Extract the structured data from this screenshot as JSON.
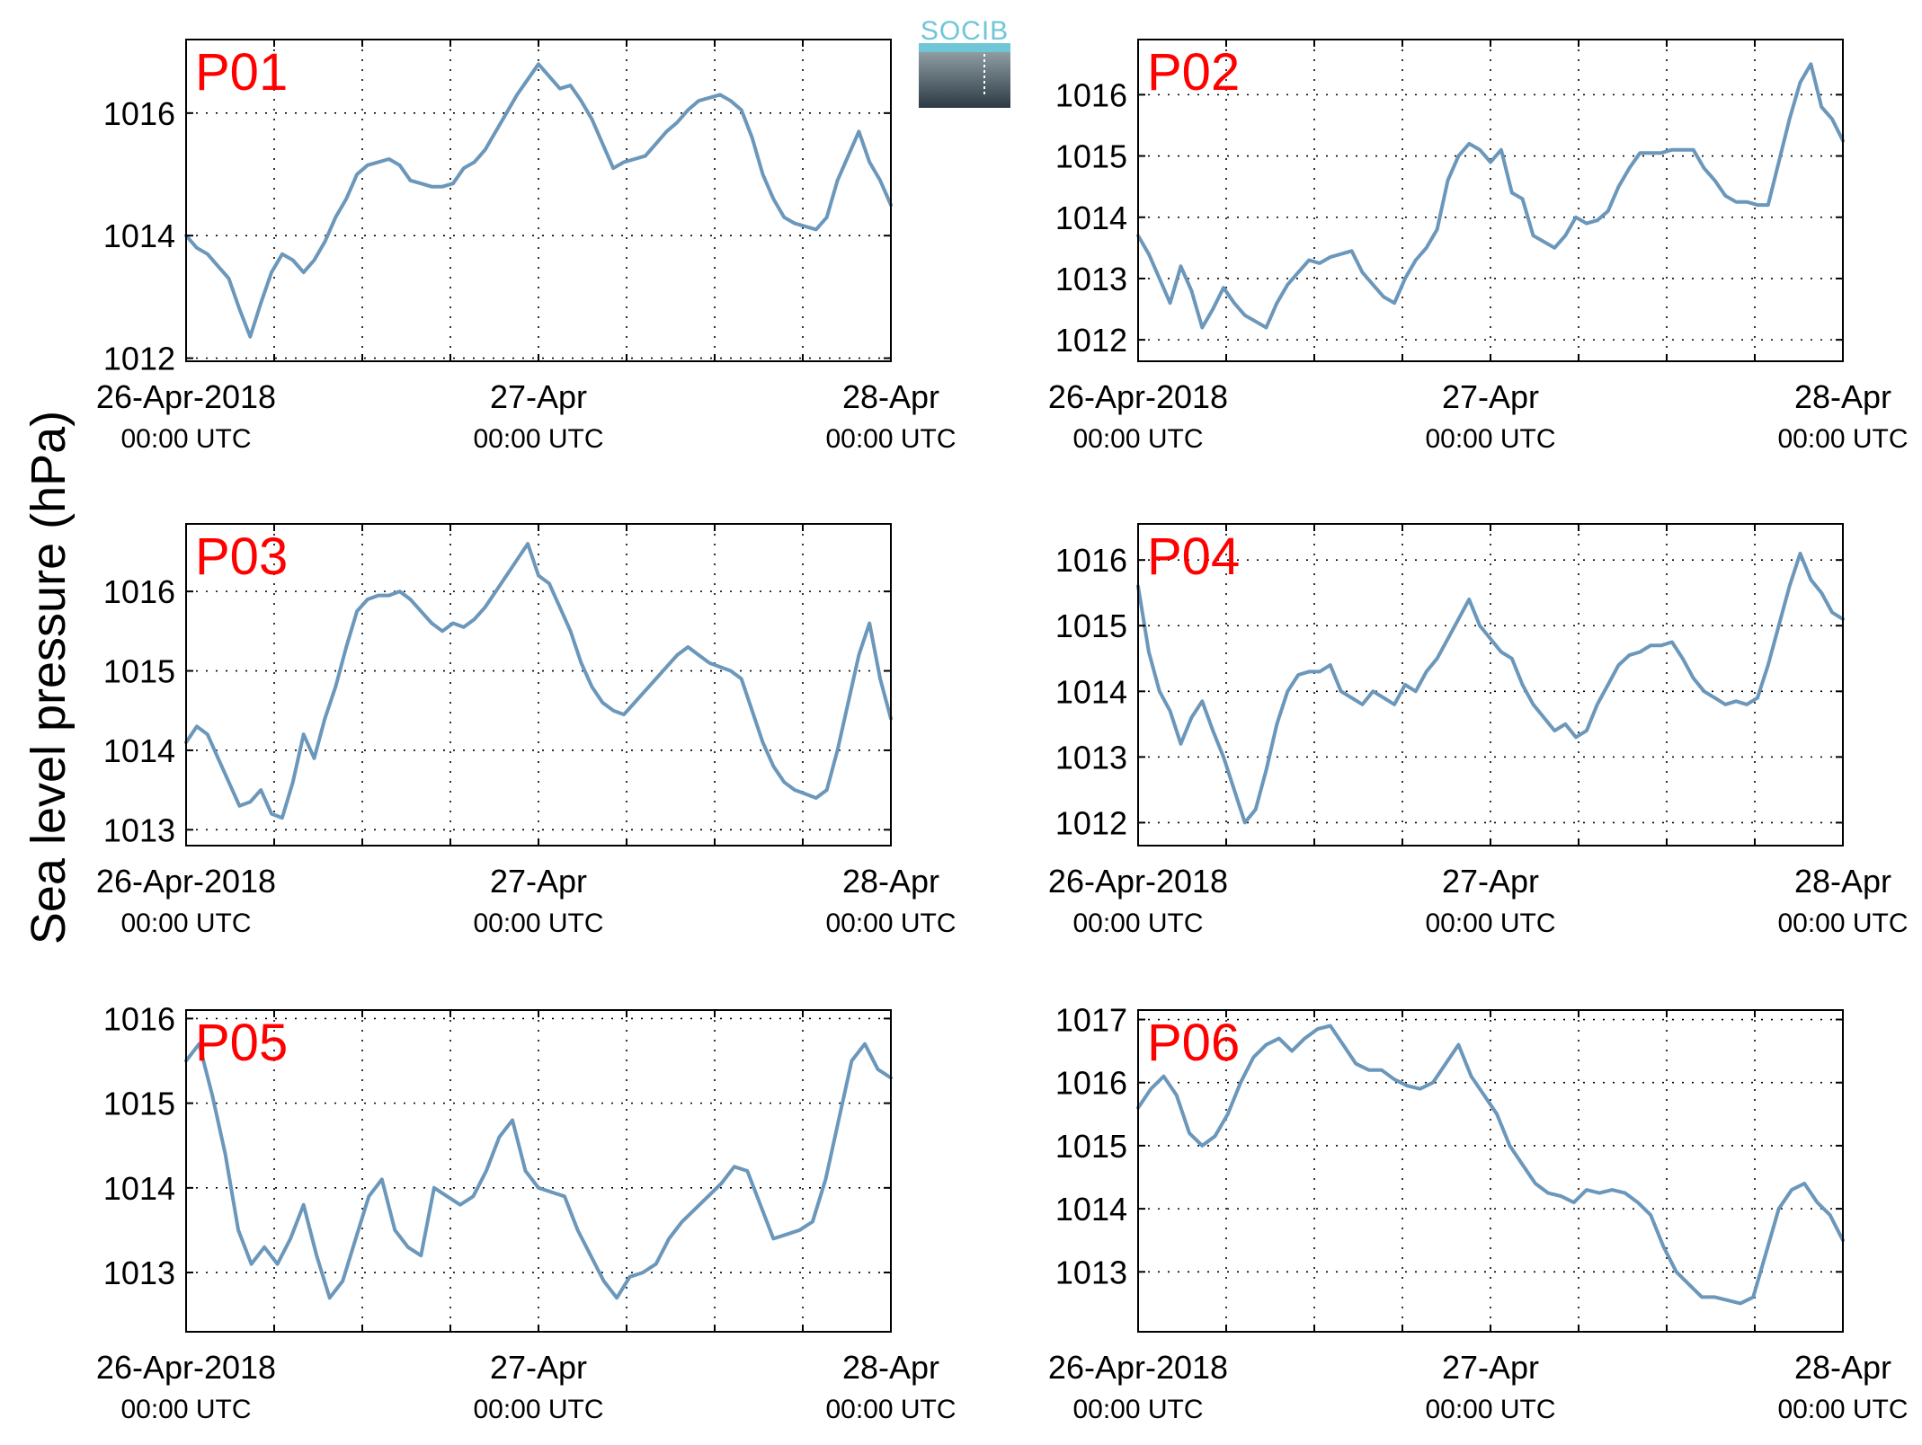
{
  "figure": {
    "ylabel": "Sea level pressure (hPa)",
    "logo_text": "SOCIB"
  },
  "colors": {
    "line": "#6b97bb",
    "panel_label": "#ff0000",
    "logo_accent": "#6ec6d6"
  },
  "chart_data": [
    {
      "type": "line",
      "panel": "P01",
      "series": [
        {
          "values": [
            1014.0,
            1013.8,
            1013.7,
            1013.5,
            1013.3,
            1012.8,
            1012.35,
            1012.9,
            1013.4,
            1013.7,
            1013.6,
            1013.4,
            1013.6,
            1013.9,
            1014.3,
            1014.6,
            1015.0,
            1015.15,
            1015.2,
            1015.25,
            1015.15,
            1014.9,
            1014.85,
            1014.8,
            1014.8,
            1014.85,
            1015.1,
            1015.2,
            1015.4,
            1015.7,
            1016.0,
            1016.3,
            1016.55,
            1016.8,
            1016.6,
            1016.4,
            1016.45,
            1016.2,
            1015.9,
            1015.5,
            1015.1,
            1015.2,
            1015.25,
            1015.3,
            1015.5,
            1015.7,
            1015.85,
            1016.05,
            1016.2,
            1016.25,
            1016.3,
            1016.2,
            1016.05,
            1015.6,
            1015.0,
            1014.6,
            1014.3,
            1014.2,
            1014.15,
            1014.1,
            1014.3,
            1014.9,
            1015.3,
            1015.7,
            1015.2,
            1014.9,
            1014.5
          ]
        }
      ],
      "x_ticks": [
        {
          "date": "26-Apr-2018",
          "time": "00:00 UTC"
        },
        {
          "date": "27-Apr",
          "time": "00:00 UTC"
        },
        {
          "date": "28-Apr",
          "time": "00:00 UTC"
        }
      ],
      "y_ticks": [
        1012,
        1014,
        1016
      ],
      "ylim": [
        1011.95,
        1017.2
      ],
      "grid": true
    },
    {
      "type": "line",
      "panel": "P02",
      "series": [
        {
          "values": [
            1013.7,
            1013.4,
            1013.0,
            1012.6,
            1013.2,
            1012.8,
            1012.2,
            1012.5,
            1012.85,
            1012.6,
            1012.4,
            1012.3,
            1012.2,
            1012.6,
            1012.9,
            1013.1,
            1013.3,
            1013.25,
            1013.35,
            1013.4,
            1013.45,
            1013.1,
            1012.9,
            1012.7,
            1012.6,
            1013.0,
            1013.3,
            1013.5,
            1013.8,
            1014.6,
            1015.0,
            1015.2,
            1015.1,
            1014.9,
            1015.1,
            1014.4,
            1014.3,
            1013.7,
            1013.6,
            1013.5,
            1013.7,
            1014.0,
            1013.9,
            1013.95,
            1014.1,
            1014.5,
            1014.8,
            1015.05,
            1015.05,
            1015.05,
            1015.1,
            1015.1,
            1015.1,
            1014.8,
            1014.6,
            1014.35,
            1014.25,
            1014.25,
            1014.2,
            1014.2,
            1014.9,
            1015.6,
            1016.2,
            1016.5,
            1015.8,
            1015.6,
            1015.25
          ]
        }
      ],
      "x_ticks": [
        {
          "date": "26-Apr-2018",
          "time": "00:00 UTC"
        },
        {
          "date": "27-Apr",
          "time": "00:00 UTC"
        },
        {
          "date": "28-Apr",
          "time": "00:00 UTC"
        }
      ],
      "y_ticks": [
        1012,
        1013,
        1014,
        1015,
        1016
      ],
      "ylim": [
        1011.65,
        1016.9
      ],
      "grid": true
    },
    {
      "type": "line",
      "panel": "P03",
      "series": [
        {
          "values": [
            1014.1,
            1014.3,
            1014.2,
            1013.9,
            1013.6,
            1013.3,
            1013.35,
            1013.5,
            1013.2,
            1013.15,
            1013.6,
            1014.2,
            1013.9,
            1014.4,
            1014.8,
            1015.3,
            1015.75,
            1015.9,
            1015.95,
            1015.95,
            1016.0,
            1015.9,
            1015.75,
            1015.6,
            1015.5,
            1015.6,
            1015.55,
            1015.65,
            1015.8,
            1016.0,
            1016.2,
            1016.4,
            1016.6,
            1016.2,
            1016.1,
            1015.8,
            1015.5,
            1015.1,
            1014.8,
            1014.6,
            1014.5,
            1014.45,
            1014.6,
            1014.75,
            1014.9,
            1015.05,
            1015.2,
            1015.3,
            1015.2,
            1015.1,
            1015.05,
            1015.0,
            1014.9,
            1014.5,
            1014.1,
            1013.8,
            1013.6,
            1013.5,
            1013.45,
            1013.4,
            1013.5,
            1014.0,
            1014.6,
            1015.2,
            1015.6,
            1014.9,
            1014.4
          ]
        }
      ],
      "x_ticks": [
        {
          "date": "26-Apr-2018",
          "time": "00:00 UTC"
        },
        {
          "date": "27-Apr",
          "time": "00:00 UTC"
        },
        {
          "date": "28-Apr",
          "time": "00:00 UTC"
        }
      ],
      "y_ticks": [
        1013,
        1014,
        1015,
        1016
      ],
      "ylim": [
        1012.8,
        1016.85
      ],
      "grid": true
    },
    {
      "type": "line",
      "panel": "P04",
      "series": [
        {
          "values": [
            1015.6,
            1014.6,
            1014.0,
            1013.7,
            1013.2,
            1013.6,
            1013.85,
            1013.4,
            1013.0,
            1012.5,
            1012.0,
            1012.2,
            1012.8,
            1013.5,
            1014.0,
            1014.25,
            1014.3,
            1014.3,
            1014.4,
            1014.0,
            1013.9,
            1013.8,
            1014.0,
            1013.9,
            1013.8,
            1014.1,
            1014.0,
            1014.3,
            1014.5,
            1014.8,
            1015.1,
            1015.4,
            1015.0,
            1014.8,
            1014.6,
            1014.5,
            1014.1,
            1013.8,
            1013.6,
            1013.4,
            1013.5,
            1013.3,
            1013.4,
            1013.8,
            1014.1,
            1014.4,
            1014.55,
            1014.6,
            1014.7,
            1014.7,
            1014.75,
            1014.5,
            1014.2,
            1014.0,
            1013.9,
            1013.8,
            1013.85,
            1013.8,
            1013.9,
            1014.4,
            1015.0,
            1015.6,
            1016.1,
            1015.7,
            1015.5,
            1015.2,
            1015.1
          ]
        }
      ],
      "x_ticks": [
        {
          "date": "26-Apr-2018",
          "time": "00:00 UTC"
        },
        {
          "date": "27-Apr",
          "time": "00:00 UTC"
        },
        {
          "date": "28-Apr",
          "time": "00:00 UTC"
        }
      ],
      "y_ticks": [
        1012,
        1013,
        1014,
        1015,
        1016
      ],
      "ylim": [
        1011.65,
        1016.55
      ],
      "grid": true
    },
    {
      "type": "line",
      "panel": "P05",
      "series": [
        {
          "values": [
            1015.5,
            1015.7,
            1015.1,
            1014.4,
            1013.5,
            1013.1,
            1013.3,
            1013.1,
            1013.4,
            1013.8,
            1013.2,
            1012.7,
            1012.9,
            1013.4,
            1013.9,
            1014.1,
            1013.5,
            1013.3,
            1013.2,
            1014.0,
            1013.9,
            1013.8,
            1013.9,
            1014.2,
            1014.6,
            1014.8,
            1014.2,
            1014.0,
            1013.95,
            1013.9,
            1013.5,
            1013.2,
            1012.9,
            1012.7,
            1012.95,
            1013.0,
            1013.1,
            1013.4,
            1013.6,
            1013.75,
            1013.9,
            1014.05,
            1014.25,
            1014.2,
            1013.8,
            1013.4,
            1013.45,
            1013.5,
            1013.6,
            1014.1,
            1014.8,
            1015.5,
            1015.7,
            1015.4,
            1015.3
          ]
        }
      ],
      "x_ticks": [
        {
          "date": "26-Apr-2018",
          "time": "00:00 UTC"
        },
        {
          "date": "27-Apr",
          "time": "00:00 UTC"
        },
        {
          "date": "28-Apr",
          "time": "00:00 UTC"
        }
      ],
      "y_ticks": [
        1013,
        1014,
        1015,
        1016
      ],
      "ylim": [
        1012.3,
        1016.1
      ],
      "grid": true
    },
    {
      "type": "line",
      "panel": "P06",
      "series": [
        {
          "values": [
            1015.6,
            1015.9,
            1016.1,
            1015.8,
            1015.2,
            1015.0,
            1015.15,
            1015.5,
            1016.0,
            1016.4,
            1016.6,
            1016.7,
            1016.5,
            1016.7,
            1016.85,
            1016.9,
            1016.6,
            1016.3,
            1016.2,
            1016.2,
            1016.05,
            1015.95,
            1015.9,
            1016.0,
            1016.3,
            1016.6,
            1016.1,
            1015.8,
            1015.5,
            1015.0,
            1014.7,
            1014.4,
            1014.25,
            1014.2,
            1014.1,
            1014.3,
            1014.25,
            1014.3,
            1014.25,
            1014.1,
            1013.9,
            1013.4,
            1013.0,
            1012.8,
            1012.6,
            1012.6,
            1012.55,
            1012.5,
            1012.6,
            1013.3,
            1014.0,
            1014.3,
            1014.4,
            1014.1,
            1013.9,
            1013.5
          ]
        }
      ],
      "x_ticks": [
        {
          "date": "26-Apr-2018",
          "time": "00:00 UTC"
        },
        {
          "date": "27-Apr",
          "time": "00:00 UTC"
        },
        {
          "date": "28-Apr",
          "time": "00:00 UTC"
        }
      ],
      "y_ticks": [
        1013,
        1014,
        1015,
        1016,
        1017
      ],
      "ylim": [
        1012.05,
        1017.15
      ],
      "grid": true
    }
  ]
}
